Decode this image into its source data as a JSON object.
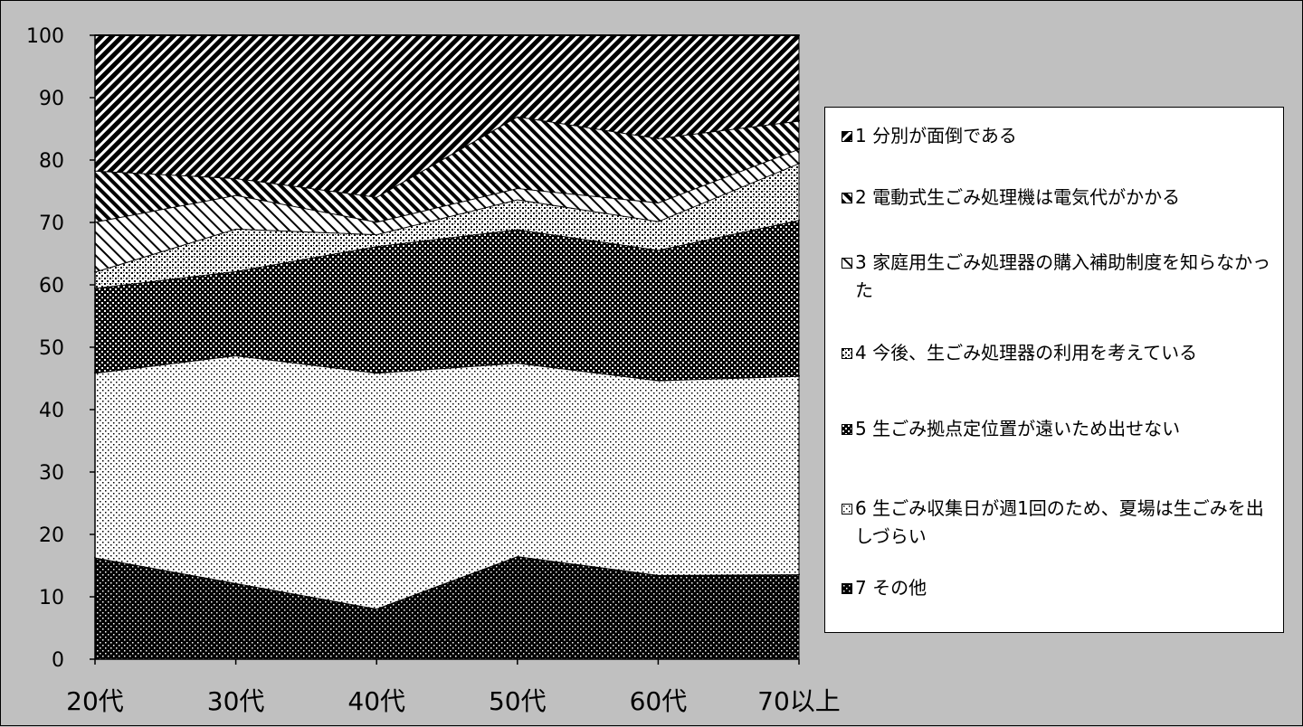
{
  "chart_data": {
    "type": "area",
    "stacked": true,
    "categories": [
      "20代",
      "30代",
      "40代",
      "50代",
      "60代",
      "70以上"
    ],
    "ylim": [
      0,
      100
    ],
    "yticks": [
      0,
      10,
      20,
      30,
      40,
      50,
      60,
      70,
      80,
      90,
      100
    ],
    "series": [
      {
        "name": "7 その他",
        "values": [
          16.3,
          12.2,
          8.1,
          16.5,
          13.5,
          13.6
        ],
        "pattern": "dark-dots"
      },
      {
        "name": "6 生ごみ収集日が週1回のため、夏場は生ごみを出しづらい",
        "values": [
          29.6,
          36.5,
          37.8,
          31.0,
          31.2,
          31.8
        ],
        "pattern": "light-dots"
      },
      {
        "name": "5 生ごみ拠点定位置が遠いため出せない",
        "values": [
          13.6,
          13.5,
          20.3,
          21.4,
          20.9,
          25.0
        ],
        "pattern": "dark-check"
      },
      {
        "name": "4 今後、生ごみ処理器の利用を考えている",
        "values": [
          2.6,
          6.8,
          1.9,
          4.8,
          4.6,
          9.1
        ],
        "pattern": "light-check"
      },
      {
        "name": "3 家庭用生ごみ処理器の購入補助制度を知らなかった",
        "values": [
          8.0,
          5.4,
          2.0,
          1.8,
          3.0,
          2.3
        ],
        "pattern": "light-diag"
      },
      {
        "name": "2 電動式生ごみ処理機は電気代がかかる",
        "values": [
          8.2,
          2.7,
          4.0,
          11.5,
          10.3,
          4.5
        ],
        "pattern": "medium-diag"
      },
      {
        "name": "1 分別が面倒である",
        "values": [
          21.7,
          22.9,
          25.9,
          13.0,
          16.5,
          13.7
        ],
        "pattern": "dark-diag"
      }
    ]
  }
}
